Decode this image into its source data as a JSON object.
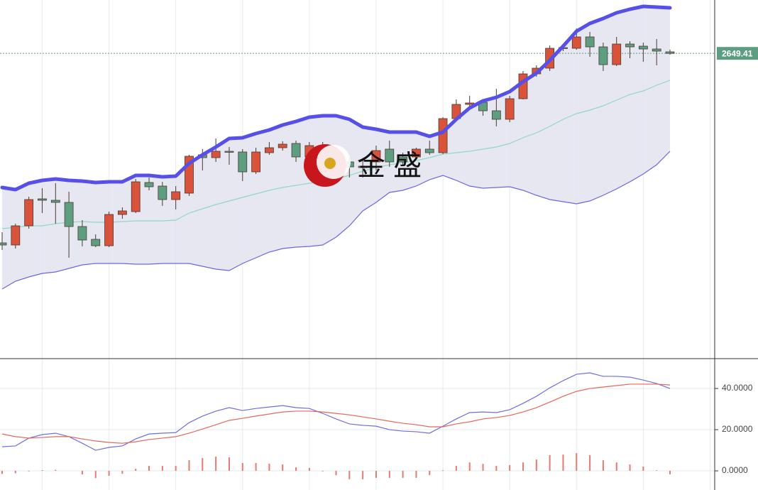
{
  "chart_data": [
    {
      "type": "candlestick",
      "up_color": "#d9523a",
      "down_color": "#5e9e80",
      "outline_color": "#4a3a30",
      "open": [
        2516,
        2514.5,
        2528,
        2547,
        2546,
        2544.5,
        2527.5,
        2518.5,
        2514,
        2536,
        2538,
        2558.5,
        2556,
        2546.5,
        2551,
        2578,
        2576,
        2580.5,
        2580,
        2566,
        2579.5,
        2583,
        2586,
        2576.5,
        2582,
        2571,
        2573,
        2570,
        2573,
        2582,
        2576.5,
        2576.5,
        2582,
        2579.5,
        2603.5,
        2613.5,
        2615,
        2609,
        2603,
        2617.5,
        2635,
        2639,
        2653.5,
        2653,
        2661,
        2654,
        2641.5,
        2656,
        2654.5,
        2652.5,
        2650.5
      ],
      "high": [
        2523.5,
        2529.5,
        2548.5,
        2554.5,
        2558,
        2552,
        2532,
        2522,
        2538,
        2541,
        2561,
        2562,
        2559,
        2556,
        2578,
        2582,
        2589.5,
        2583.5,
        2582,
        2583,
        2587,
        2587.5,
        2588,
        2587,
        2587,
        2577,
        2576,
        2574.5,
        2584.5,
        2588,
        2579.5,
        2583,
        2588,
        2604.5,
        2617,
        2619.5,
        2617,
        2624.5,
        2619.5,
        2637,
        2641,
        2655,
        2656,
        2667,
        2664.5,
        2657,
        2661,
        2658,
        2657,
        2659.5,
        2652
      ],
      "low": [
        2511,
        2512,
        2526,
        2537,
        2529.5,
        2505.5,
        2513.5,
        2513,
        2513,
        2533,
        2537,
        2553,
        2542,
        2539.5,
        2549,
        2567,
        2573,
        2571,
        2559.5,
        2564.5,
        2578,
        2581,
        2573,
        2573,
        2569.5,
        2567,
        2562,
        2562,
        2567,
        2569.5,
        2571,
        2574.5,
        2578,
        2578.5,
        2602,
        2612,
        2605.5,
        2598,
        2601,
        2617,
        2633,
        2637,
        2651,
        2652,
        2647,
        2637,
        2640.5,
        2646,
        2643.5,
        2641,
        2648.5
      ],
      "close": [
        2514.5,
        2528,
        2546.5,
        2546,
        2544.5,
        2527.5,
        2518,
        2514,
        2536,
        2538.5,
        2559,
        2555.5,
        2546.5,
        2552,
        2577,
        2576,
        2580.5,
        2580,
        2566,
        2580,
        2583,
        2585.5,
        2576.5,
        2584.5,
        2576,
        2573,
        2569.5,
        2569,
        2581,
        2573,
        2573,
        2582,
        2579.5,
        2603.5,
        2613.5,
        2614.5,
        2609,
        2603,
        2617.5,
        2635,
        2639,
        2653,
        2653,
        2661,
        2654,
        2641.5,
        2656,
        2654,
        2652.5,
        2651,
        2649.41
      ],
      "bands": {
        "fill_color": "#e3e3f0",
        "upper": {
          "color": "#5650e8",
          "values": [
            2555,
            2553.5,
            2558,
            2560,
            2561,
            2560,
            2559.5,
            2558.5,
            2559,
            2559,
            2563.5,
            2563.5,
            2562.5,
            2563,
            2572,
            2578,
            2583.5,
            2589.5,
            2590,
            2593,
            2595.5,
            2599,
            2601.5,
            2604.5,
            2605.5,
            2605.5,
            2603,
            2597.5,
            2596,
            2594,
            2594,
            2594,
            2591,
            2594,
            2603,
            2611,
            2616,
            2618.5,
            2622.5,
            2629.5,
            2635.5,
            2644.5,
            2654.5,
            2665,
            2670.5,
            2674,
            2678,
            2680.5,
            2682.5,
            2682,
            2681.5
          ]
        },
        "middle": {
          "color": "#8fd9c2",
          "values": [
            2526,
            2527,
            2528,
            2528,
            2529.5,
            2530.5,
            2531,
            2530.5,
            2530.5,
            2531,
            2531.5,
            2531.5,
            2531.5,
            2532,
            2537,
            2540,
            2543,
            2545.5,
            2548,
            2550.5,
            2553,
            2555,
            2556.5,
            2558,
            2559,
            2561,
            2563.5,
            2566.5,
            2569,
            2571,
            2572.5,
            2574,
            2576,
            2578.5,
            2579.5,
            2580.5,
            2582,
            2583.5,
            2586,
            2590,
            2593.5,
            2598,
            2603,
            2607,
            2609.5,
            2612.5,
            2616.5,
            2620.5,
            2623,
            2627,
            2630.5
          ]
        },
        "lower": {
          "color": "#6c66e2",
          "values": [
            2483.5,
            2489,
            2492,
            2494.5,
            2495.5,
            2498,
            2500.5,
            2501.5,
            2501.5,
            2501.5,
            2501,
            2501,
            2501.5,
            2501.5,
            2501.5,
            2499.5,
            2497.5,
            2496.5,
            2501.5,
            2505.5,
            2509.5,
            2512,
            2513,
            2513.5,
            2514.5,
            2520,
            2528,
            2538.5,
            2544.5,
            2551.5,
            2553,
            2556,
            2560.5,
            2563.5,
            2560,
            2556,
            2554.5,
            2555,
            2555.5,
            2553,
            2549.5,
            2546.5,
            2545,
            2543.5,
            2545.5,
            2549.5,
            2554,
            2559,
            2564.5,
            2571,
            2580.5
          ]
        }
      },
      "last_price": {
        "value": 2649.41,
        "label": "2649.41",
        "color": "#5e9e80"
      },
      "ylim": [
        2434.5,
        2687
      ],
      "watermark": "金 盛"
    },
    {
      "type": "line",
      "ylim": [
        -9.3,
        54.5
      ],
      "yticks": [
        {
          "value": 0,
          "label": "0.0000"
        },
        {
          "value": 20,
          "label": "20.0000"
        },
        {
          "value": 40,
          "label": "40.0000"
        }
      ],
      "grid": true,
      "lines": [
        {
          "color": "#6f6ee0",
          "values": [
            11.7,
            12.1,
            15.9,
            17.6,
            18.3,
            16.6,
            13.4,
            10.0,
            11.4,
            12.1,
            15.5,
            17.9,
            18.3,
            18.6,
            23.4,
            26.6,
            29.0,
            30.7,
            29.3,
            30.3,
            31.0,
            31.7,
            30.7,
            30.3,
            27.9,
            25.2,
            22.8,
            22.1,
            21.7,
            20.0,
            19.3,
            19.0,
            18.3,
            21.7,
            25.2,
            28.3,
            28.6,
            28.3,
            29.7,
            32.8,
            36.2,
            40.3,
            43.8,
            46.9,
            47.6,
            45.9,
            45.9,
            45.5,
            44.1,
            42.4,
            40.0
          ]
        },
        {
          "color": "#e4675b",
          "values": [
            17.9,
            16.6,
            15.9,
            16.2,
            16.6,
            16.6,
            15.5,
            14.5,
            13.8,
            13.4,
            14.1,
            15.2,
            15.9,
            16.6,
            18.3,
            20.3,
            22.4,
            24.5,
            25.5,
            26.6,
            27.6,
            28.6,
            29.0,
            29.0,
            28.6,
            27.9,
            27.2,
            26.2,
            25.2,
            24.1,
            23.1,
            22.4,
            21.4,
            21.4,
            22.8,
            23.8,
            25.2,
            25.9,
            26.9,
            28.6,
            30.7,
            33.4,
            36.2,
            38.6,
            40.0,
            40.7,
            41.4,
            42.1,
            42.1,
            42.1,
            41.7
          ]
        }
      ],
      "bars": {
        "color": "#e8796d",
        "values": [
          -1.5,
          -1.2,
          -0.3,
          0.3,
          0.5,
          0,
          -1.7,
          -3.5,
          -2.4,
          -1.4,
          1.0,
          2.4,
          2.4,
          2.4,
          5.2,
          6.2,
          6.9,
          6.6,
          3.8,
          3.8,
          3.5,
          3.1,
          1.7,
          1.4,
          -0.3,
          -2.1,
          -4.1,
          -4.1,
          -3.4,
          -3.4,
          -3.4,
          -3.4,
          -2.1,
          0.3,
          2.4,
          4.1,
          3.4,
          2.4,
          2.8,
          4.1,
          5.5,
          7.6,
          7.9,
          8.6,
          7.6,
          5.2,
          4.1,
          3.1,
          2.1,
          0.3,
          -1.7
        ]
      }
    }
  ]
}
